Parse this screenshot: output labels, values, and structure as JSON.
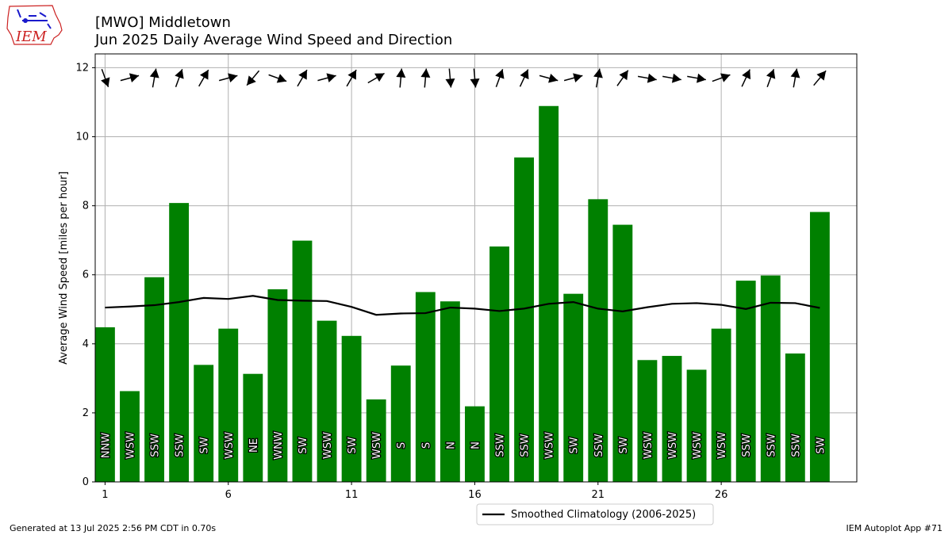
{
  "header": {
    "logo_text": "IEM",
    "title": "[MWO] Middletown",
    "subtitle": "Jun 2025 Daily Average Wind Speed and Direction"
  },
  "footer": {
    "generated": "Generated at 13 Jul 2025 2:56 PM CDT in 0.70s",
    "app": "IEM Autoplot App #71"
  },
  "colors": {
    "bar": "#008000",
    "climatology_line": "#000000",
    "grid": "#b0b0b0",
    "logo_red": "#cc2222",
    "logo_blue": "#1a1acc"
  },
  "chart_data": {
    "type": "bar",
    "title": "[MWO] Middletown",
    "subtitle": "Jun 2025 Daily Average Wind Speed and Direction",
    "xlabel": "",
    "ylabel": "Average Wind Speed [miles per hour]",
    "xlim": [
      0.6,
      31.5
    ],
    "ylim": [
      0,
      12.4
    ],
    "xticks": [
      1,
      6,
      11,
      16,
      21,
      26
    ],
    "yticks": [
      0,
      2,
      4,
      6,
      8,
      10,
      12
    ],
    "grid": true,
    "legend_position": "bottom-center",
    "days": [
      1,
      2,
      3,
      4,
      5,
      6,
      7,
      8,
      9,
      10,
      11,
      12,
      13,
      14,
      15,
      16,
      17,
      18,
      19,
      20,
      21,
      22,
      23,
      24,
      25,
      26,
      27,
      28,
      29,
      30
    ],
    "series": [
      {
        "name": "",
        "type": "bar",
        "values": [
          4.48,
          2.63,
          5.93,
          8.08,
          3.39,
          4.44,
          3.13,
          5.58,
          6.99,
          4.67,
          4.23,
          2.39,
          3.37,
          5.5,
          5.23,
          2.19,
          6.82,
          9.4,
          10.89,
          5.45,
          8.19,
          7.45,
          3.53,
          3.65,
          3.25,
          4.44,
          5.83,
          5.98,
          3.72,
          7.82
        ],
        "direction_labels": [
          "NNW",
          "WSW",
          "SSW",
          "SSW",
          "SW",
          "WSW",
          "NE",
          "WNW",
          "SW",
          "WSW",
          "SW",
          "WSW",
          "S",
          "S",
          "N",
          "N",
          "SSW",
          "SSW",
          "WSW",
          "SW",
          "SSW",
          "SW",
          "WSW",
          "WSW",
          "WSW",
          "WSW",
          "SSW",
          "SSW",
          "SSW",
          "SW"
        ],
        "arrow_toward_deg": [
          160,
          75,
          10,
          20,
          30,
          75,
          220,
          110,
          30,
          75,
          30,
          60,
          5,
          5,
          175,
          175,
          20,
          25,
          105,
          75,
          10,
          35,
          100,
          100,
          100,
          70,
          25,
          20,
          10,
          40
        ]
      },
      {
        "name": "Smoothed Climatology (2006-2025)",
        "type": "line",
        "values": [
          5.05,
          5.08,
          5.12,
          5.21,
          5.33,
          5.3,
          5.39,
          5.27,
          5.25,
          5.24,
          5.07,
          4.84,
          4.88,
          4.89,
          5.05,
          5.02,
          4.95,
          5.02,
          5.16,
          5.21,
          5.02,
          4.94,
          5.06,
          5.16,
          5.18,
          5.13,
          5.01,
          5.19,
          5.18,
          5.04
        ]
      }
    ]
  }
}
